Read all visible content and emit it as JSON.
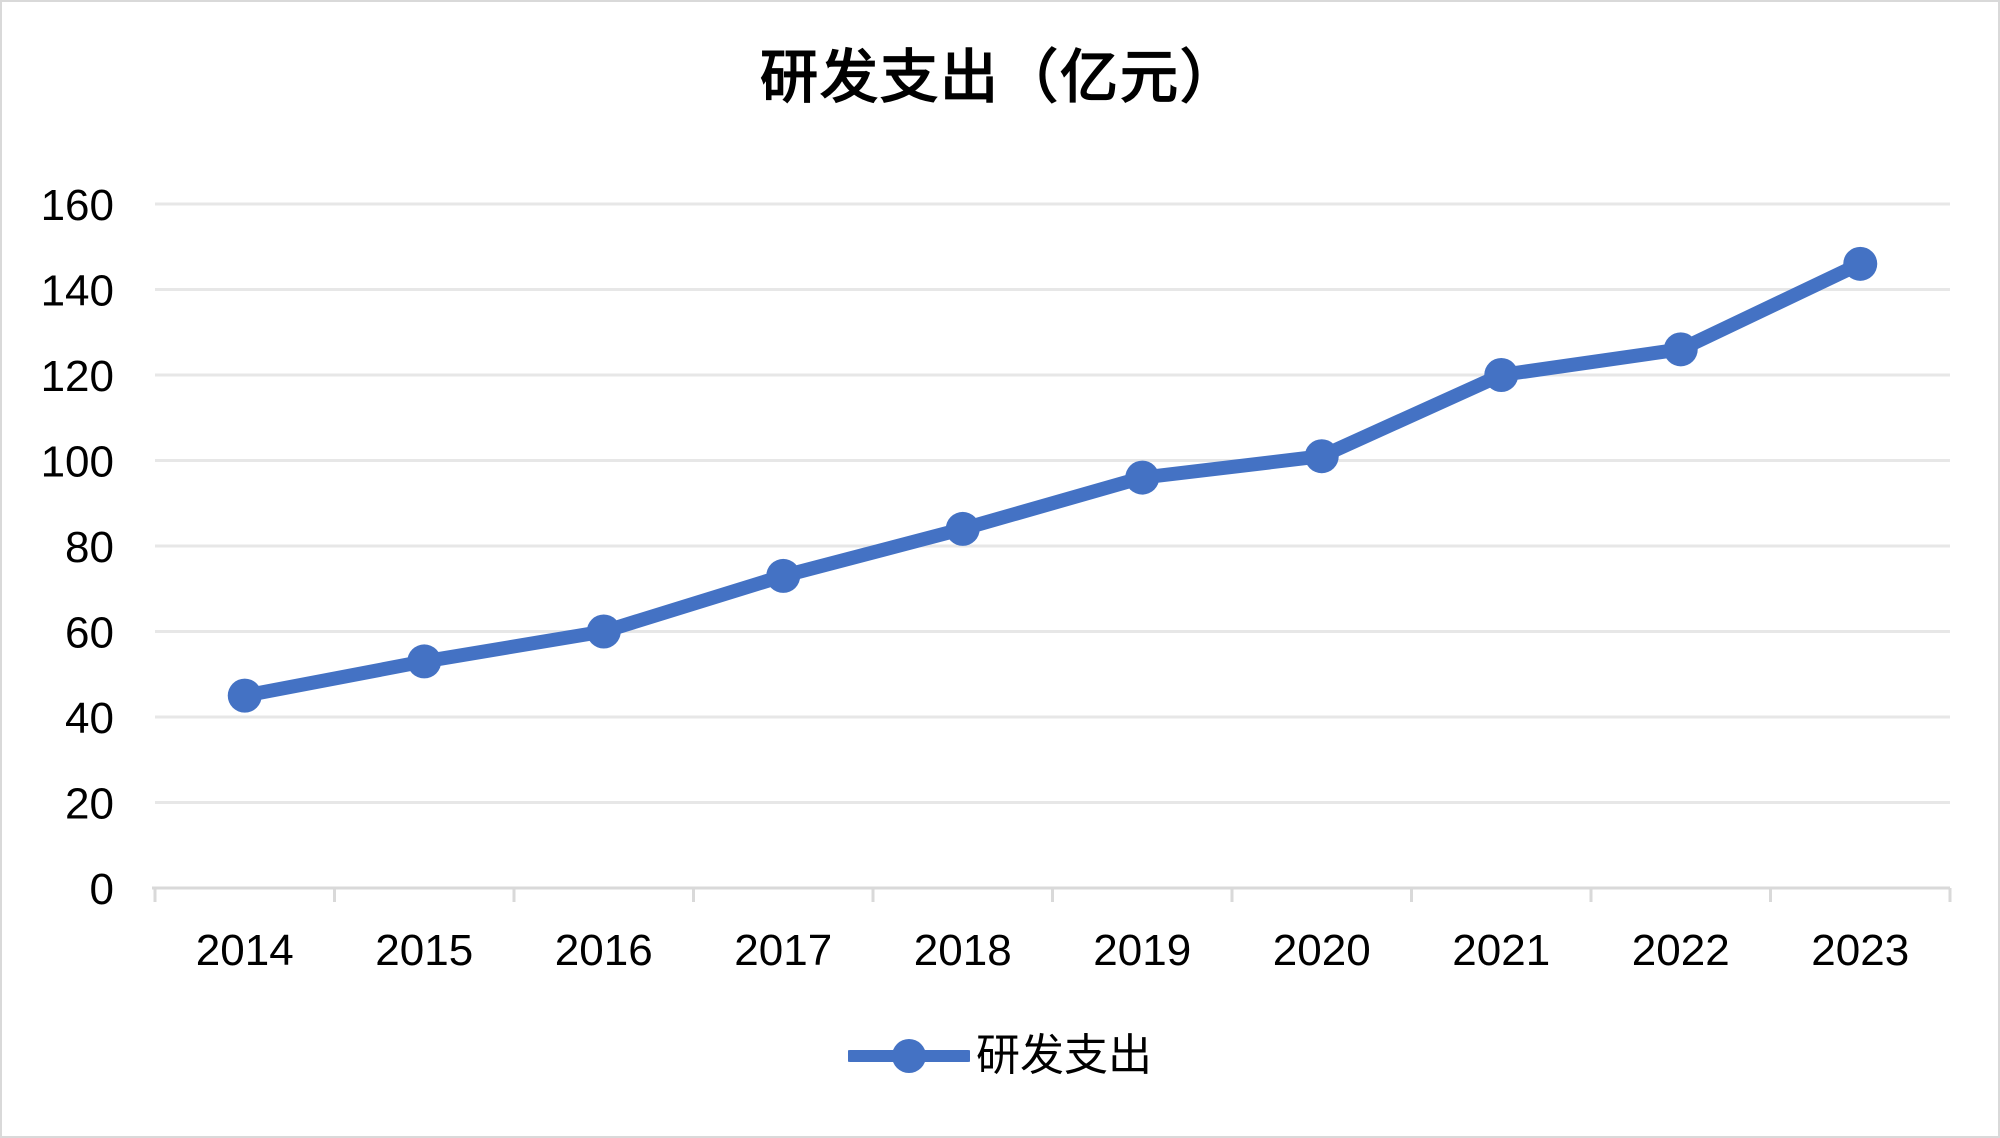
{
  "title": "研发支出（亿元）",
  "legend": {
    "label": "研发支出",
    "marker": "line-with-circle"
  },
  "colors": {
    "series": "#4472C4",
    "gridline": "#E7E7E7",
    "axis": "#D9D9D9",
    "text": "#000000",
    "background": "#FFFFFF",
    "border": "#D9D9D9"
  },
  "chart_data": {
    "type": "line",
    "title": "研发支出（亿元）",
    "categories": [
      "2014",
      "2015",
      "2016",
      "2017",
      "2018",
      "2019",
      "2020",
      "2021",
      "2022",
      "2023"
    ],
    "series": [
      {
        "name": "研发支出",
        "values": [
          45,
          53,
          60,
          73,
          84,
          96,
          101,
          120,
          126,
          146
        ]
      }
    ],
    "ylim": [
      0,
      160
    ],
    "yticks": [
      0,
      20,
      40,
      60,
      80,
      100,
      120,
      140,
      160
    ],
    "xlabel": "",
    "ylabel": "",
    "grid": true,
    "legend_position": "bottom"
  }
}
